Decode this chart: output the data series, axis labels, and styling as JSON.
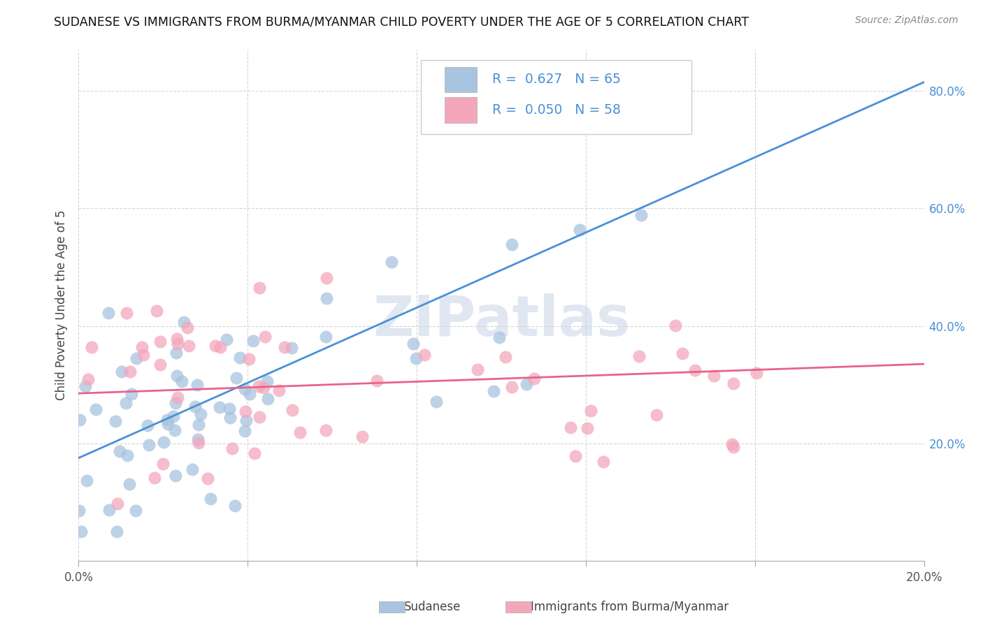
{
  "title": "SUDANESE VS IMMIGRANTS FROM BURMA/MYANMAR CHILD POVERTY UNDER THE AGE OF 5 CORRELATION CHART",
  "source": "Source: ZipAtlas.com",
  "ylabel": "Child Poverty Under the Age of 5",
  "xmin": 0.0,
  "xmax": 0.2,
  "ymin": 0.0,
  "ymax": 0.87,
  "yticks": [
    0.0,
    0.2,
    0.4,
    0.6,
    0.8
  ],
  "ytick_labels": [
    "",
    "20.0%",
    "40.0%",
    "60.0%",
    "80.0%"
  ],
  "xticks": [
    0.0,
    0.04,
    0.08,
    0.12,
    0.16,
    0.2
  ],
  "xtick_labels": [
    "0.0%",
    "",
    "",
    "",
    "",
    "20.0%"
  ],
  "sudanese_R": 0.627,
  "sudanese_N": 65,
  "burma_R": 0.05,
  "burma_N": 58,
  "sudanese_color": "#a8c4e0",
  "burma_color": "#f4a7bb",
  "sudanese_line_color": "#4a90d9",
  "burma_line_color": "#e8638a",
  "legend_text_color": "#4a90d9",
  "watermark": "ZIPatlas",
  "watermark_color": "#ccd8e8",
  "sud_line_x0": 0.0,
  "sud_line_y0": 0.175,
  "sud_line_x1": 0.2,
  "sud_line_y1": 0.815,
  "bur_line_x0": 0.0,
  "bur_line_y0": 0.285,
  "bur_line_x1": 0.2,
  "bur_line_y1": 0.335
}
